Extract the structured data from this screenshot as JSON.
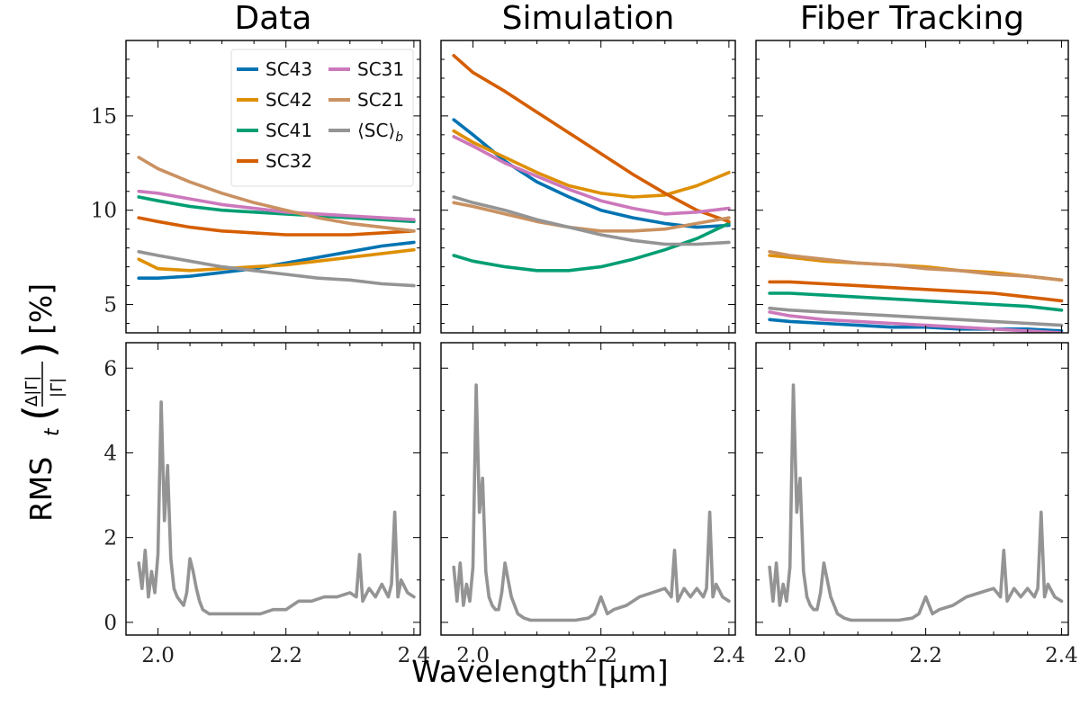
{
  "figure": {
    "xlabel": "Wavelength [μm]",
    "ylabel": "RMS",
    "ylabel_sub": "t",
    "ylabel_frac_num": "Δ|Γ|",
    "ylabel_frac_den": "|Γ|",
    "ylabel_unit": "[%]"
  },
  "colors": {
    "SC43": "#0173b2",
    "SC42": "#de8f05",
    "SC41": "#029e73",
    "SC32": "#d55e00",
    "SC31": "#cc78bc",
    "SC21": "#ca9161",
    "SCb": "#949494"
  },
  "legend": [
    {
      "key": "SC43",
      "label": "SC43"
    },
    {
      "key": "SC42",
      "label": "SC42"
    },
    {
      "key": "SC41",
      "label": "SC41"
    },
    {
      "key": "SC32",
      "label": "SC32"
    },
    {
      "key": "SC31",
      "label": "SC31"
    },
    {
      "key": "SC21",
      "label": "SC21"
    },
    {
      "key": "SCb",
      "label": "⟨SC⟩",
      "sub": "b"
    }
  ],
  "chart_data": [
    {
      "type": "line",
      "panel": "top-left",
      "title": "Data",
      "xlim": [
        1.95,
        2.41
      ],
      "ylim": [
        3.5,
        19.0
      ],
      "xticks": [
        2.0,
        2.2,
        2.4
      ],
      "yticks": [
        5,
        10,
        15
      ],
      "legend_position": "top-right",
      "x": [
        1.97,
        2.0,
        2.05,
        2.1,
        2.15,
        2.2,
        2.25,
        2.3,
        2.35,
        2.4
      ],
      "series": [
        {
          "name": "SC43",
          "values": [
            6.4,
            6.4,
            6.5,
            6.7,
            6.9,
            7.2,
            7.5,
            7.8,
            8.1,
            8.3
          ]
        },
        {
          "name": "SC42",
          "values": [
            7.4,
            6.9,
            6.8,
            6.9,
            7.0,
            7.1,
            7.3,
            7.5,
            7.7,
            7.9
          ]
        },
        {
          "name": "SC41",
          "values": [
            10.7,
            10.5,
            10.2,
            10.0,
            9.9,
            9.8,
            9.7,
            9.6,
            9.5,
            9.4
          ]
        },
        {
          "name": "SC32",
          "values": [
            9.6,
            9.4,
            9.1,
            8.9,
            8.8,
            8.7,
            8.7,
            8.7,
            8.8,
            8.9
          ]
        },
        {
          "name": "SC31",
          "values": [
            11.0,
            10.9,
            10.6,
            10.3,
            10.1,
            9.9,
            9.8,
            9.7,
            9.6,
            9.5
          ]
        },
        {
          "name": "SC21",
          "values": [
            12.8,
            12.2,
            11.5,
            10.9,
            10.4,
            10.0,
            9.6,
            9.3,
            9.1,
            8.9
          ]
        },
        {
          "name": "⟨SC⟩b",
          "values": [
            7.8,
            7.6,
            7.3,
            7.0,
            6.8,
            6.6,
            6.4,
            6.3,
            6.1,
            6.0
          ]
        }
      ]
    },
    {
      "type": "line",
      "panel": "top-middle",
      "title": "Simulation",
      "xlim": [
        1.95,
        2.41
      ],
      "ylim": [
        3.5,
        19.0
      ],
      "xticks": [
        2.0,
        2.2,
        2.4
      ],
      "yticks": [
        5,
        10,
        15
      ],
      "x": [
        1.97,
        2.0,
        2.05,
        2.1,
        2.15,
        2.2,
        2.25,
        2.3,
        2.35,
        2.4
      ],
      "series": [
        {
          "name": "SC43",
          "values": [
            14.8,
            14.0,
            12.6,
            11.5,
            10.7,
            10.0,
            9.6,
            9.3,
            9.1,
            9.2
          ]
        },
        {
          "name": "SC42",
          "values": [
            14.2,
            13.6,
            12.8,
            12.0,
            11.3,
            10.9,
            10.7,
            10.8,
            11.3,
            12.0
          ]
        },
        {
          "name": "SC41",
          "values": [
            7.6,
            7.3,
            7.0,
            6.8,
            6.8,
            7.0,
            7.4,
            7.9,
            8.5,
            9.3
          ]
        },
        {
          "name": "SC32",
          "values": [
            18.2,
            17.3,
            16.3,
            15.2,
            14.1,
            13.0,
            11.9,
            10.9,
            10.0,
            9.4
          ]
        },
        {
          "name": "SC31",
          "values": [
            13.9,
            13.4,
            12.5,
            11.8,
            11.1,
            10.5,
            10.1,
            9.8,
            9.9,
            10.1
          ]
        },
        {
          "name": "SC21",
          "values": [
            10.4,
            10.2,
            9.8,
            9.4,
            9.1,
            8.9,
            8.9,
            9.0,
            9.3,
            9.6
          ]
        },
        {
          "name": "⟨SC⟩b",
          "values": [
            10.7,
            10.4,
            10.0,
            9.5,
            9.1,
            8.7,
            8.4,
            8.2,
            8.2,
            8.3
          ]
        }
      ]
    },
    {
      "type": "line",
      "panel": "top-right",
      "title": "Fiber Tracking",
      "xlim": [
        1.95,
        2.41
      ],
      "ylim": [
        3.5,
        19.0
      ],
      "xticks": [
        2.0,
        2.2,
        2.4
      ],
      "yticks": [
        5,
        10,
        15
      ],
      "x": [
        1.97,
        2.0,
        2.05,
        2.1,
        2.15,
        2.2,
        2.25,
        2.3,
        2.35,
        2.4
      ],
      "series": [
        {
          "name": "SC43",
          "values": [
            4.2,
            4.1,
            4.0,
            3.9,
            3.8,
            3.8,
            3.7,
            3.7,
            3.7,
            3.6
          ]
        },
        {
          "name": "SC42",
          "values": [
            7.6,
            7.5,
            7.3,
            7.2,
            7.1,
            7.0,
            6.8,
            6.7,
            6.5,
            6.3
          ]
        },
        {
          "name": "SC41",
          "values": [
            5.6,
            5.6,
            5.5,
            5.4,
            5.3,
            5.2,
            5.1,
            5.0,
            4.9,
            4.7
          ]
        },
        {
          "name": "SC32",
          "values": [
            6.2,
            6.2,
            6.1,
            6.0,
            5.9,
            5.8,
            5.7,
            5.6,
            5.4,
            5.2
          ]
        },
        {
          "name": "SC31",
          "values": [
            4.6,
            4.4,
            4.2,
            4.1,
            4.0,
            3.9,
            3.8,
            3.7,
            3.6,
            3.5
          ]
        },
        {
          "name": "SC21",
          "values": [
            7.8,
            7.6,
            7.4,
            7.2,
            7.1,
            6.9,
            6.8,
            6.6,
            6.5,
            6.3
          ]
        },
        {
          "name": "⟨SC⟩b",
          "values": [
            4.8,
            4.7,
            4.6,
            4.5,
            4.4,
            4.3,
            4.2,
            4.1,
            4.0,
            3.9
          ]
        }
      ]
    },
    {
      "type": "line",
      "panel": "bottom-left",
      "xlim": [
        1.95,
        2.41
      ],
      "ylim": [
        -0.3,
        6.6
      ],
      "xticks": [
        2.0,
        2.2,
        2.4
      ],
      "yticks": [
        0,
        2,
        4,
        6
      ],
      "x": [
        1.97,
        1.975,
        1.98,
        1.985,
        1.99,
        1.995,
        2.0,
        2.005,
        2.01,
        2.015,
        2.02,
        2.025,
        2.03,
        2.035,
        2.04,
        2.045,
        2.05,
        2.055,
        2.06,
        2.065,
        2.07,
        2.08,
        2.09,
        2.1,
        2.12,
        2.14,
        2.16,
        2.18,
        2.2,
        2.21,
        2.22,
        2.24,
        2.26,
        2.28,
        2.3,
        2.31,
        2.315,
        2.32,
        2.33,
        2.34,
        2.35,
        2.36,
        2.365,
        2.37,
        2.375,
        2.38,
        2.39,
        2.4
      ],
      "series": [
        {
          "name": "⟨SC⟩b",
          "values": [
            1.4,
            0.8,
            1.7,
            0.6,
            1.2,
            0.7,
            1.6,
            5.2,
            2.4,
            3.7,
            1.5,
            0.8,
            0.6,
            0.5,
            0.4,
            0.7,
            1.5,
            1.2,
            0.8,
            0.5,
            0.3,
            0.2,
            0.2,
            0.2,
            0.2,
            0.2,
            0.2,
            0.3,
            0.3,
            0.4,
            0.5,
            0.5,
            0.6,
            0.6,
            0.7,
            0.6,
            1.6,
            0.5,
            0.8,
            0.6,
            0.9,
            0.6,
            0.9,
            2.6,
            0.6,
            1.0,
            0.7,
            0.6
          ]
        }
      ]
    },
    {
      "type": "line",
      "panel": "bottom-middle",
      "xlim": [
        1.95,
        2.41
      ],
      "ylim": [
        -0.3,
        6.6
      ],
      "xticks": [
        2.0,
        2.2,
        2.4
      ],
      "yticks": [
        0,
        2,
        4,
        6
      ],
      "x": [
        1.97,
        1.975,
        1.98,
        1.985,
        1.99,
        1.995,
        2.0,
        2.005,
        2.01,
        2.015,
        2.02,
        2.025,
        2.03,
        2.035,
        2.04,
        2.045,
        2.05,
        2.055,
        2.06,
        2.065,
        2.07,
        2.08,
        2.09,
        2.1,
        2.12,
        2.14,
        2.16,
        2.18,
        2.19,
        2.2,
        2.21,
        2.22,
        2.24,
        2.26,
        2.28,
        2.3,
        2.31,
        2.315,
        2.32,
        2.33,
        2.34,
        2.35,
        2.36,
        2.365,
        2.37,
        2.375,
        2.38,
        2.39,
        2.4
      ],
      "series": [
        {
          "name": "⟨SC⟩b",
          "values": [
            1.3,
            0.5,
            1.4,
            0.4,
            0.9,
            0.5,
            1.3,
            5.6,
            2.6,
            3.4,
            1.2,
            0.6,
            0.4,
            0.3,
            0.3,
            0.7,
            1.4,
            1.0,
            0.6,
            0.4,
            0.2,
            0.1,
            0.05,
            0.05,
            0.05,
            0.05,
            0.05,
            0.1,
            0.2,
            0.6,
            0.2,
            0.3,
            0.4,
            0.6,
            0.7,
            0.8,
            0.6,
            1.7,
            0.5,
            0.8,
            0.6,
            0.8,
            0.6,
            0.8,
            2.6,
            0.6,
            0.9,
            0.6,
            0.5
          ]
        }
      ]
    },
    {
      "type": "line",
      "panel": "bottom-right",
      "xlim": [
        1.95,
        2.41
      ],
      "ylim": [
        -0.3,
        6.6
      ],
      "xticks": [
        2.0,
        2.2,
        2.4
      ],
      "yticks": [
        0,
        2,
        4,
        6
      ],
      "x": [
        1.97,
        1.975,
        1.98,
        1.985,
        1.99,
        1.995,
        2.0,
        2.005,
        2.01,
        2.015,
        2.02,
        2.025,
        2.03,
        2.035,
        2.04,
        2.045,
        2.05,
        2.055,
        2.06,
        2.065,
        2.07,
        2.08,
        2.09,
        2.1,
        2.12,
        2.14,
        2.16,
        2.18,
        2.19,
        2.2,
        2.21,
        2.22,
        2.24,
        2.26,
        2.28,
        2.3,
        2.31,
        2.315,
        2.32,
        2.33,
        2.34,
        2.35,
        2.36,
        2.365,
        2.37,
        2.375,
        2.38,
        2.39,
        2.4
      ],
      "series": [
        {
          "name": "⟨SC⟩b",
          "values": [
            1.3,
            0.5,
            1.4,
            0.4,
            0.9,
            0.5,
            1.3,
            5.6,
            2.6,
            3.4,
            1.2,
            0.6,
            0.4,
            0.3,
            0.3,
            0.7,
            1.4,
            1.0,
            0.6,
            0.4,
            0.2,
            0.1,
            0.05,
            0.05,
            0.05,
            0.05,
            0.05,
            0.1,
            0.2,
            0.6,
            0.2,
            0.3,
            0.4,
            0.6,
            0.7,
            0.8,
            0.6,
            1.7,
            0.5,
            0.8,
            0.6,
            0.8,
            0.6,
            0.8,
            2.6,
            0.6,
            0.9,
            0.6,
            0.5
          ]
        }
      ]
    }
  ]
}
